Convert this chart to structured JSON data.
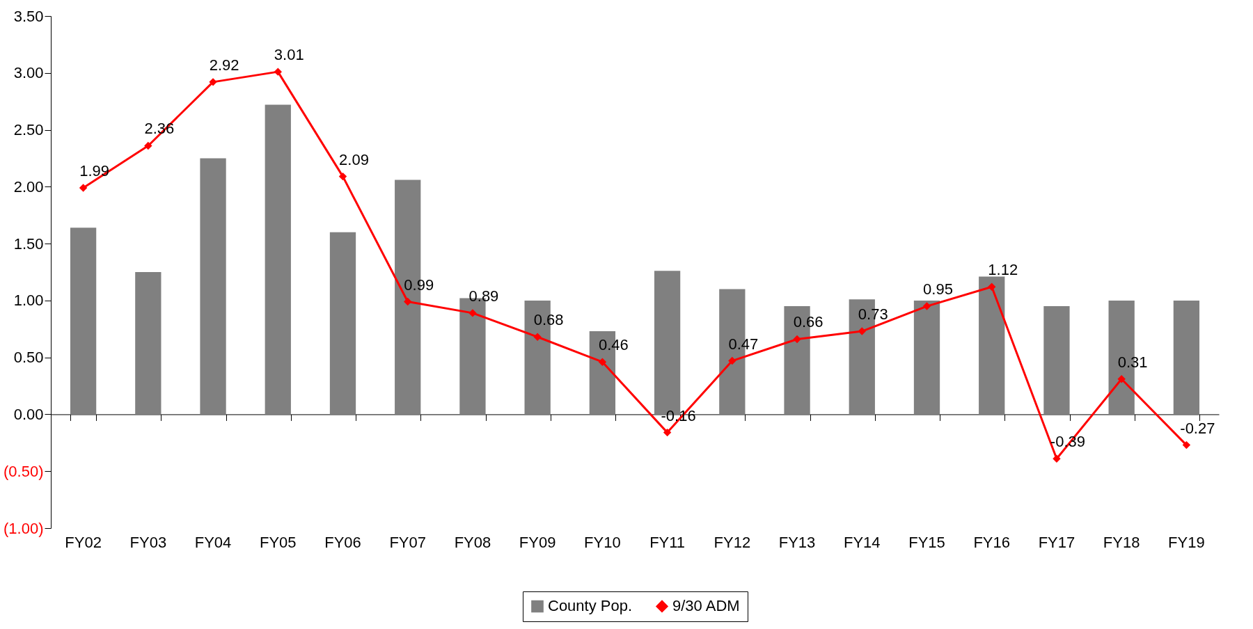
{
  "chart_data": {
    "type": "bar",
    "categories": [
      "FY02",
      "FY03",
      "FY04",
      "FY05",
      "FY06",
      "FY07",
      "FY08",
      "FY09",
      "FY10",
      "FY11",
      "FY12",
      "FY13",
      "FY14",
      "FY15",
      "FY16",
      "FY17",
      "FY18",
      "FY19"
    ],
    "series": [
      {
        "name": "County Pop.",
        "color": "#808080",
        "values": [
          1.64,
          1.25,
          2.25,
          2.72,
          1.6,
          2.06,
          1.02,
          1.0,
          0.73,
          1.26,
          1.1,
          0.95,
          1.01,
          1.0,
          1.21,
          0.95,
          1.0,
          1.0
        ]
      },
      {
        "name": "9/30 ADM",
        "type": "line",
        "color": "#ff0000",
        "values": [
          1.99,
          2.36,
          2.92,
          3.01,
          2.09,
          0.99,
          0.89,
          0.68,
          0.46,
          -0.16,
          0.47,
          0.66,
          0.73,
          0.95,
          1.12,
          -0.39,
          0.31,
          -0.27
        ],
        "value_labels": [
          "1.99",
          "2.36",
          "2.92",
          "3.01",
          "2.09",
          "0.99",
          "0.89",
          "0.68",
          "0.46",
          "-0.16",
          "0.47",
          "0.66",
          "0.73",
          "0.95",
          "1.12",
          "-0.39",
          "0.31",
          "-0.27"
        ]
      }
    ],
    "ylim": [
      -1,
      3.5
    ],
    "yticks": [
      {
        "value": -1,
        "label": "(1.00)"
      },
      {
        "value": -0.5,
        "label": "(0.50)"
      },
      {
        "value": 0,
        "label": "0.00"
      },
      {
        "value": 0.5,
        "label": "0.50"
      },
      {
        "value": 1,
        "label": "1.00"
      },
      {
        "value": 1.5,
        "label": "1.50"
      },
      {
        "value": 2,
        "label": "2.00"
      },
      {
        "value": 2.5,
        "label": "2.50"
      },
      {
        "value": 3,
        "label": "3.00"
      },
      {
        "value": 3.5,
        "label": "3.50"
      }
    ],
    "marker": "diamond",
    "legend": "bottom"
  }
}
